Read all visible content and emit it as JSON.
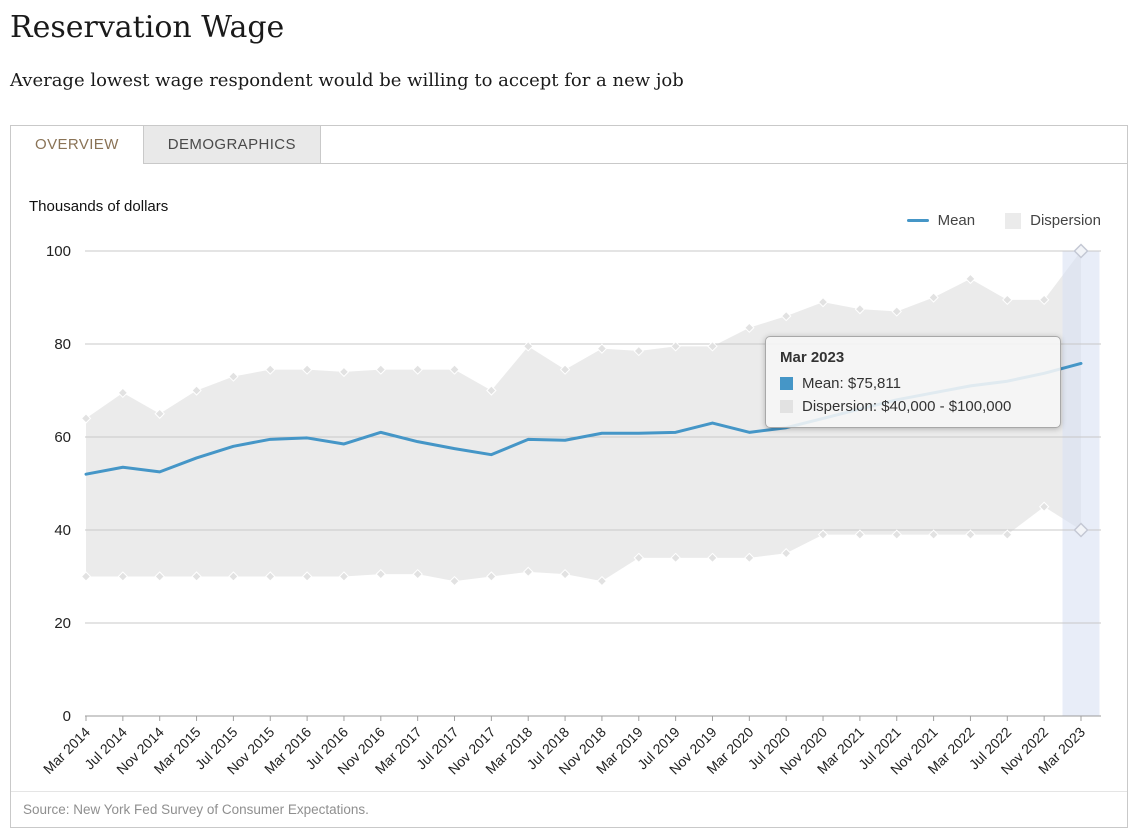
{
  "page": {
    "title": "Reservation Wage",
    "subtitle": "Average lowest wage respondent would be willing to accept for a new job",
    "source": "Source: New York Fed Survey of Consumer Expectations."
  },
  "tabs": [
    {
      "label": "OVERVIEW",
      "active": true
    },
    {
      "label": "DEMOGRAPHICS",
      "active": false
    }
  ],
  "legend": [
    {
      "label": "Mean",
      "swatch": "line"
    },
    {
      "label": "Dispersion",
      "swatch": "area"
    }
  ],
  "tooltip": {
    "title": "Mar 2023",
    "rows": [
      {
        "series": "Mean",
        "label": "Mean: $75,811"
      },
      {
        "series": "Dispersion",
        "label": "Dispersion: $40,000 - $100,000"
      }
    ]
  },
  "chart_data": {
    "type": "line",
    "title": "Reservation Wage",
    "unit_label": "Thousands of dollars",
    "xlabel": "",
    "ylabel": "Thousands of dollars",
    "ylim": [
      0,
      100
    ],
    "yticks": [
      0,
      20,
      40,
      60,
      80,
      100
    ],
    "grid": true,
    "legend_position": "top-right",
    "highlight_index": 27,
    "highlighted_point": {
      "category": "Mar 2023",
      "mean": 75.811,
      "dispersion_low": 40,
      "dispersion_high": 100
    },
    "categories": [
      "Mar 2014",
      "Jul 2014",
      "Nov 2014",
      "Mar 2015",
      "Jul 2015",
      "Nov 2015",
      "Mar 2016",
      "Jul 2016",
      "Nov 2016",
      "Mar 2017",
      "Jul 2017",
      "Nov 2017",
      "Mar 2018",
      "Jul 2018",
      "Nov 2018",
      "Mar 2019",
      "Jul 2019",
      "Nov 2019",
      "Mar 2020",
      "Jul 2020",
      "Nov 2020",
      "Mar 2021",
      "Jul 2021",
      "Nov 2021",
      "Mar 2022",
      "Jul 2022",
      "Nov 2022",
      "Mar 2023"
    ],
    "series": [
      {
        "name": "Mean",
        "values": [
          52.0,
          53.5,
          52.5,
          55.5,
          58.0,
          59.5,
          59.8,
          58.5,
          61.0,
          59.0,
          57.5,
          56.2,
          59.5,
          59.3,
          60.8,
          60.8,
          61.0,
          63.0,
          61.0,
          62.0,
          64.0,
          66.0,
          68.0,
          69.5,
          71.0,
          72.0,
          73.7,
          75.811
        ]
      },
      {
        "name": "Dispersion Upper",
        "values": [
          64,
          69.5,
          65,
          70,
          73,
          74.5,
          74.5,
          74,
          74.5,
          74.5,
          74.5,
          70,
          79.5,
          74.5,
          79,
          78.5,
          79.5,
          79.5,
          83.5,
          86,
          89,
          87.5,
          87,
          90,
          94,
          89.5,
          89.5,
          100
        ]
      },
      {
        "name": "Dispersion Lower",
        "values": [
          30,
          30,
          30,
          30,
          30,
          30,
          30,
          30,
          30.5,
          30.5,
          29,
          30,
          31,
          30.5,
          29,
          34,
          34,
          34,
          34,
          35,
          39,
          39,
          39,
          39,
          39,
          39,
          45,
          40
        ]
      }
    ],
    "colors": {
      "mean_line": "#4596c7",
      "dispersion_fill": "#ebebeb",
      "marker_fill": "#e2e2e2",
      "highlight_band": "#d9e1f4",
      "highlight_marker_fill": "#f2f4f8",
      "highlight_marker_stroke": "#c4c8d4"
    }
  }
}
